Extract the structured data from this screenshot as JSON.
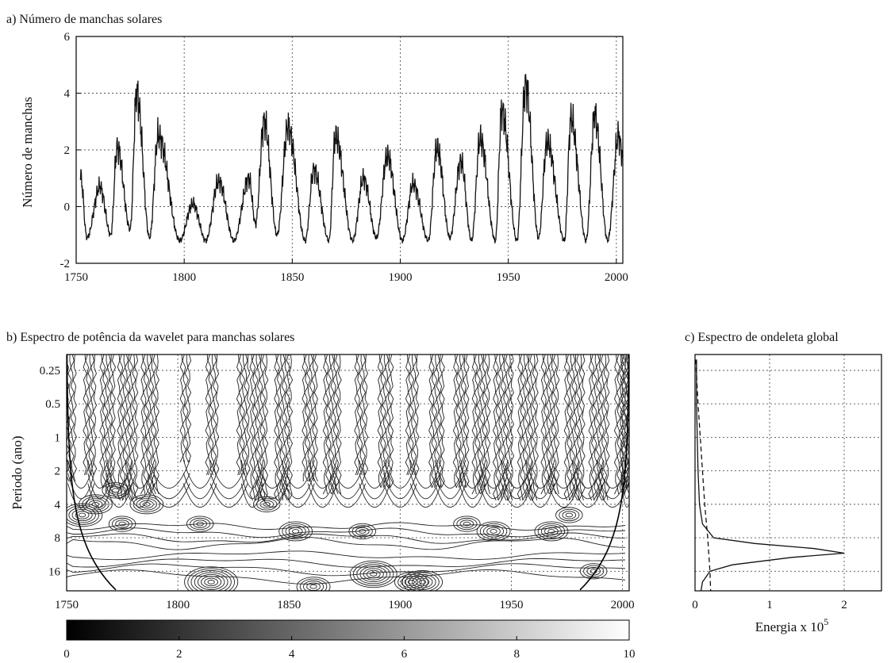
{
  "chart_data": [
    {
      "panel": "a",
      "type": "line",
      "title": "a) Número de manchas solares",
      "xlabel": "",
      "ylabel": "Número de manchas",
      "xlim": [
        1750,
        2003
      ],
      "ylim": [
        -2,
        6
      ],
      "xticks": [
        1750,
        1800,
        1850,
        1900,
        1950,
        2000
      ],
      "yticks": [
        -2,
        0,
        2,
        4,
        6
      ],
      "grid": true,
      "series": [
        {
          "x": [
            1752,
            1755,
            1761,
            1766,
            1769,
            1775,
            1778,
            1784,
            1788,
            1798,
            1804,
            1810,
            1816,
            1823,
            1830,
            1833,
            1837,
            1843,
            1848,
            1856,
            1860,
            1867,
            1870,
            1878,
            1883,
            1889,
            1894,
            1901,
            1906,
            1913,
            1917,
            1923,
            1928,
            1933,
            1937,
            1944,
            1947,
            1954,
            1958,
            1964,
            1968,
            1976,
            1979,
            1986,
            1990,
            1996,
            2001,
            2003
          ],
          "y": [
            1.1,
            -1.1,
            0.7,
            -1.0,
            2.1,
            -0.8,
            4.0,
            -1.1,
            2.5,
            -1.2,
            0.1,
            -1.2,
            0.9,
            -1.2,
            1.0,
            -0.6,
            3.0,
            -1.0,
            2.8,
            -1.2,
            1.3,
            -1.2,
            2.5,
            -1.2,
            1.0,
            -1.1,
            1.8,
            -1.2,
            0.8,
            -1.2,
            2.1,
            -1.1,
            1.6,
            -1.2,
            2.4,
            -1.2,
            3.4,
            -1.2,
            4.3,
            -1.1,
            2.3,
            -1.2,
            3.1,
            -1.2,
            3.2,
            -1.2,
            2.5,
            1.8
          ]
        }
      ]
    },
    {
      "panel": "b",
      "type": "heatmap",
      "title": "b) Espectro de potência da wavelet para manchas solares",
      "xlabel": "",
      "ylabel": "Periodo (ano)",
      "xlim": [
        1750,
        2003
      ],
      "xticks": [
        1750,
        1800,
        1850,
        1900,
        1950,
        2000
      ],
      "yticks": [
        0.25,
        0.5,
        1,
        2,
        4,
        8,
        16
      ],
      "ylim": [
        0.18,
        24
      ],
      "y_scale": "log2",
      "y_inverted": true,
      "grid": true,
      "colorbar": {
        "min": 0,
        "max": 10,
        "ticks": [
          0,
          2,
          4,
          6,
          8,
          10
        ],
        "colors": [
          "#000000",
          "#ffffff"
        ]
      }
    },
    {
      "panel": "c",
      "type": "line",
      "title": "c) Espectro de ondeleta global",
      "xlabel": "Energia x 10",
      "xlabel_superscript": "5",
      "ylabel": "",
      "xlim": [
        0,
        2.5
      ],
      "xticks": [
        0,
        1,
        2
      ],
      "ylim": [
        0.18,
        24
      ],
      "y_scale": "log2",
      "y_inverted": true,
      "grid": true,
      "series": [
        {
          "style": "solid",
          "period": [
            0.2,
            0.5,
            1,
            2,
            4,
            6,
            8,
            9,
            10,
            11,
            12,
            14,
            16,
            20,
            24
          ],
          "energy": [
            0.02,
            0.02,
            0.03,
            0.04,
            0.06,
            0.1,
            0.25,
            0.8,
            1.6,
            2.0,
            1.3,
            0.5,
            0.2,
            0.1,
            0.08
          ]
        },
        {
          "style": "dashed",
          "period": [
            0.2,
            0.5,
            1,
            2,
            4,
            8,
            16,
            24
          ],
          "energy": [
            0.01,
            0.04,
            0.07,
            0.1,
            0.13,
            0.17,
            0.2,
            0.21
          ]
        }
      ]
    }
  ]
}
